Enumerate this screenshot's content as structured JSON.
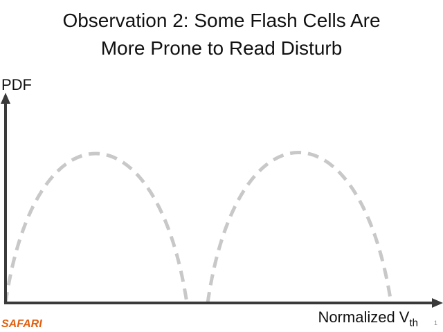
{
  "slide": {
    "title_line1": "Observation 2: Some Flash Cells Are",
    "title_line2": "More Prone to Read Disturb",
    "y_axis_label": "PDF",
    "x_axis_label": "Normalized V",
    "x_axis_subscript": "th",
    "logo": "SAFARI",
    "page_number": "1"
  },
  "colors": {
    "curve": "#c8c8c8",
    "axis": "#3a3a3a",
    "logo": "#e06010"
  }
}
